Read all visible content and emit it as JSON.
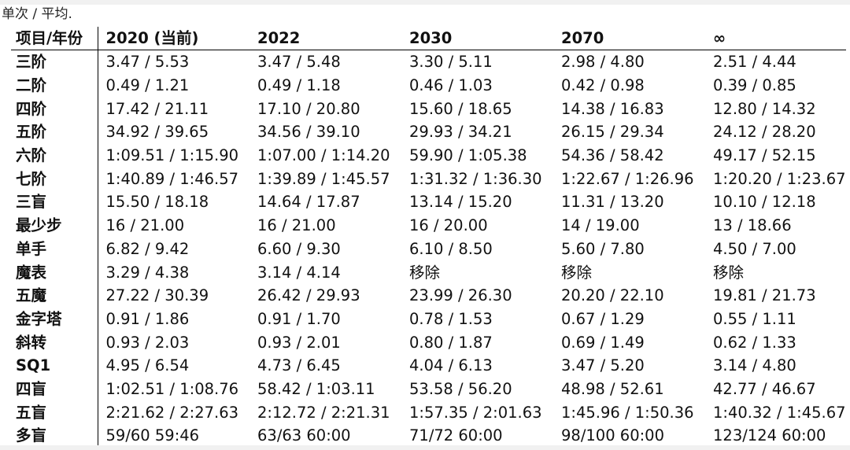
{
  "caption": "单次 / 平均.",
  "headers": [
    "项目/年份",
    "2020 (当前)",
    "2022",
    "2030",
    "2070",
    "∞"
  ],
  "rows": [
    [
      "三阶",
      "3.47 / 5.53",
      "3.47 / 5.48",
      "3.30 / 5.11",
      "2.98 / 4.80",
      "2.51 / 4.44"
    ],
    [
      "二阶",
      "0.49 / 1.21",
      "0.49 / 1.18",
      "0.46 / 1.03",
      "0.42 / 0.98",
      "0.39 / 0.85"
    ],
    [
      "四阶",
      "17.42 / 21.11",
      "17.10 / 20.80",
      "15.60 / 18.65",
      "14.38 / 16.83",
      "12.80 / 14.32"
    ],
    [
      "五阶",
      "34.92 / 39.65",
      "34.56 / 39.10",
      "29.93 / 34.21",
      "26.15 / 29.34",
      "24.12 / 28.20"
    ],
    [
      "六阶",
      "1:09.51 / 1:15.90",
      "1:07.00 / 1:14.20",
      "59.90 / 1:05.38",
      "54.36 / 58.42",
      "49.17 / 52.15"
    ],
    [
      "七阶",
      "1:40.89 / 1:46.57",
      "1:39.89 / 1:45.57",
      "1:31.32 / 1:36.30",
      "1:22.67 / 1:26.96",
      "1:20.20 / 1:23.67"
    ],
    [
      "三盲",
      "15.50 / 18.18",
      "14.64 / 17.87",
      "13.14 / 15.20",
      "11.31 / 13.20",
      "10.10 / 12.18"
    ],
    [
      "最少步",
      "16 / 21.00",
      "16 / 21.00",
      "16 / 20.00",
      "14 / 19.00",
      "13 / 18.66"
    ],
    [
      "单手",
      "6.82 / 9.42",
      "6.60 / 9.30",
      "6.10 / 8.50",
      "5.60 / 7.80",
      "4.50 / 7.00"
    ],
    [
      "魔表",
      "3.29 / 4.38",
      "3.14 / 4.14",
      "移除",
      "移除",
      "移除"
    ],
    [
      "五魔",
      "27.22 / 30.39",
      "26.42 / 29.93",
      "23.99 / 26.30",
      "20.20 / 22.10",
      "19.81 / 21.73"
    ],
    [
      "金字塔",
      "0.91 / 1.86",
      "0.91 / 1.70",
      "0.78 / 1.53",
      "0.67 / 1.29",
      "0.55 / 1.11"
    ],
    [
      "斜转",
      "0.93 / 2.03",
      "0.93 / 2.01",
      "0.80 / 1.87",
      "0.69 / 1.49",
      "0.62 / 1.33"
    ],
    [
      "SQ1",
      "4.95 / 6.54",
      "4.73 / 6.45",
      "4.04 / 6.13",
      "3.47 / 5.20",
      "3.14 / 4.80"
    ],
    [
      "四盲",
      "1:02.51 / 1:08.76",
      "58.42 / 1:03.11",
      "53.58 / 56.20",
      "48.98 / 52.61",
      "42.77 / 46.67"
    ],
    [
      "五盲",
      "2:21.62 / 2:27.63",
      "2:12.72 / 2:21.31",
      "1:57.35 / 2:01.63",
      "1:45.96 / 1:50.36",
      "1:40.32 / 1:45.67"
    ],
    [
      "多盲",
      "59/60 59:46",
      "63/63 60:00",
      "71/72 60:00",
      "98/100 60:00",
      "123/124 60:00"
    ]
  ]
}
